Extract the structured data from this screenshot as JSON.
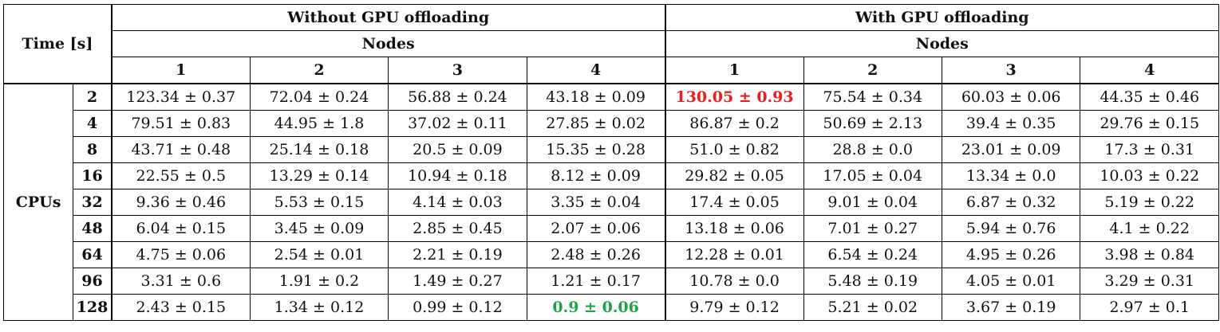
{
  "table": {
    "corner_label": "Time [s]",
    "group_headers": [
      "Without GPU offloading",
      "With GPU offloading"
    ],
    "nodes_label": "Nodes",
    "node_columns": [
      "1",
      "2",
      "3",
      "4"
    ],
    "row_group_label": "CPUs",
    "rows": [
      {
        "cpus": "2",
        "values": [
          "123.34 ± 0.37",
          "72.04 ± 0.24",
          "56.88 ± 0.24",
          "43.18 ± 0.09",
          "130.05 ± 0.93",
          "75.54 ± 0.34",
          "60.03 ± 0.06",
          "44.35 ± 0.46"
        ]
      },
      {
        "cpus": "4",
        "values": [
          "79.51 ± 0.83",
          "44.95 ± 1.8",
          "37.02 ± 0.11",
          "27.85 ± 0.02",
          "86.87 ± 0.2",
          "50.69 ± 2.13",
          "39.4 ± 0.35",
          "29.76 ± 0.15"
        ]
      },
      {
        "cpus": "8",
        "values": [
          "43.71 ± 0.48",
          "25.14 ± 0.18",
          "20.5 ± 0.09",
          "15.35 ± 0.28",
          "51.0 ± 0.82",
          "28.8 ± 0.0",
          "23.01 ± 0.09",
          "17.3 ± 0.31"
        ]
      },
      {
        "cpus": "16",
        "values": [
          "22.55 ± 0.5",
          "13.29 ± 0.14",
          "10.94 ± 0.18",
          "8.12 ± 0.09",
          "29.82 ± 0.05",
          "17.05 ± 0.04",
          "13.34 ± 0.0",
          "10.03 ± 0.22"
        ]
      },
      {
        "cpus": "32",
        "values": [
          "9.36 ± 0.46",
          "5.53 ± 0.15",
          "4.14 ± 0.03",
          "3.35 ± 0.04",
          "17.4 ± 0.05",
          "9.01 ± 0.04",
          "6.87 ± 0.32",
          "5.19 ± 0.22"
        ]
      },
      {
        "cpus": "48",
        "values": [
          "6.04 ± 0.15",
          "3.45 ± 0.09",
          "2.85 ± 0.45",
          "2.07 ± 0.06",
          "13.18 ± 0.06",
          "7.01 ± 0.27",
          "5.94 ± 0.76",
          "4.1 ± 0.22"
        ]
      },
      {
        "cpus": "64",
        "values": [
          "4.75 ± 0.06",
          "2.54 ± 0.01",
          "2.21 ± 0.19",
          "2.48 ± 0.26",
          "12.28 ± 0.01",
          "6.54 ± 0.24",
          "4.95 ± 0.26",
          "3.98 ± 0.84"
        ]
      },
      {
        "cpus": "96",
        "values": [
          "3.31 ± 0.6",
          "1.91 ± 0.2",
          "1.49 ± 0.27",
          "1.21 ± 0.17",
          "10.78 ± 0.0",
          "5.48 ± 0.19",
          "4.05 ± 0.01",
          "3.29 ± 0.31"
        ]
      },
      {
        "cpus": "128",
        "values": [
          "2.43 ± 0.15",
          "1.34 ± 0.12",
          "0.99 ± 0.12",
          "0.9 ± 0.06",
          "9.79 ± 0.12",
          "5.21 ± 0.02",
          "3.67 ± 0.19",
          "2.97 ± 0.1"
        ]
      }
    ],
    "highlights": {
      "max_cell": {
        "row": 0,
        "col": 4,
        "color": "#ee1c1c"
      },
      "min_cell": {
        "row": 8,
        "col": 3,
        "color": "#1fa34a"
      }
    }
  }
}
